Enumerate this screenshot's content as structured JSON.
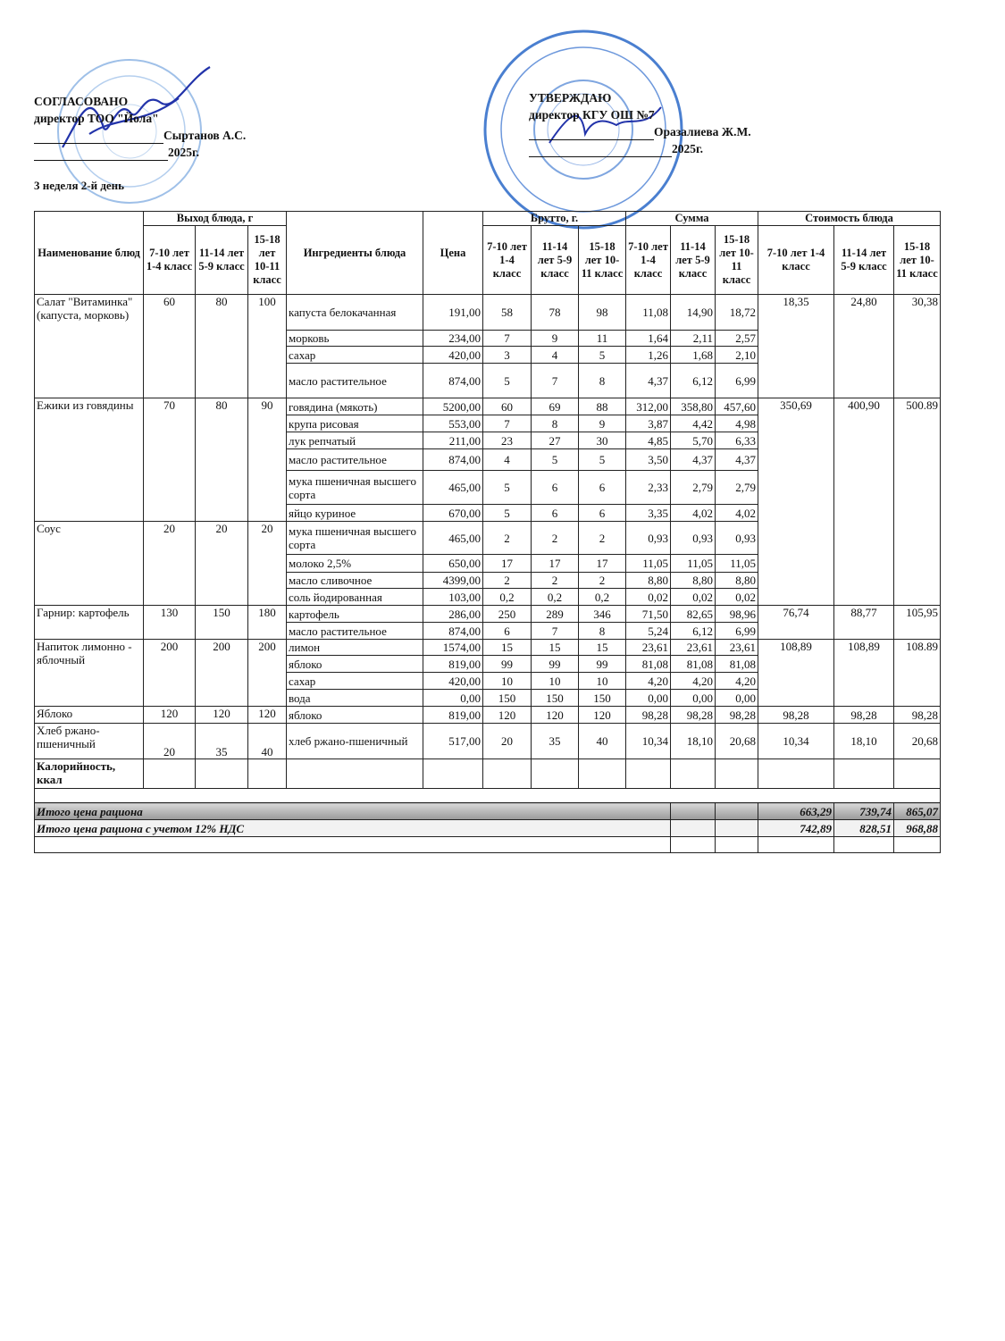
{
  "left_block": {
    "title": "СОГЛАСОВАНО",
    "position": "директор ТОО \"Йола\"",
    "name": "Сыртанов А.С.",
    "year": "2025г."
  },
  "right_block": {
    "title": "УТВЕРЖДАЮ",
    "position": "директор КГУ ОШ №7",
    "name": "Оразалиева Ж.М.",
    "year": "2025г."
  },
  "stamp_colors": {
    "ink": "#4a7fd0",
    "signature": "#2233aa"
  },
  "week_label": "3 неделя 2-й день",
  "table": {
    "headers": {
      "dish": "Наименование блюд",
      "output": "Выход блюда, г",
      "ingredients": "Ингредиенты блюда",
      "price": "Цена",
      "brutto": "Брутто, г.",
      "sum": "Сумма",
      "cost": "Стоимость блюда",
      "age_groups": [
        "7-10 лет 1-4 класс",
        "11-14 лет 5-9 класс",
        "15-18 лет 10-11 класс"
      ],
      "cost_groups": [
        "7-10 лет 1-4 класс",
        "11-14 лет 5-9 класс",
        "15-18 лет 10-11 класс"
      ]
    },
    "dishes": [
      {
        "name": "Салат \"Витаминка\" (капуста, морковь)",
        "output": [
          "60",
          "80",
          "100"
        ],
        "cost": [
          "18,35",
          "24,80",
          "30,38"
        ],
        "ingredients": [
          {
            "name": "капуста белокачанная",
            "price": "191,00",
            "brutto": [
              "58",
              "78",
              "98"
            ],
            "sum": [
              "11,08",
              "14,90",
              "18,72"
            ]
          },
          {
            "name": "морковь",
            "price": "234,00",
            "brutto": [
              "7",
              "9",
              "11"
            ],
            "sum": [
              "1,64",
              "2,11",
              "2,57"
            ]
          },
          {
            "name": "сахар",
            "price": "420,00",
            "brutto": [
              "3",
              "4",
              "5"
            ],
            "sum": [
              "1,26",
              "1,68",
              "2,10"
            ]
          },
          {
            "name": "масло растительное",
            "price": "874,00",
            "brutto": [
              "5",
              "7",
              "8"
            ],
            "sum": [
              "4,37",
              "6,12",
              "6,99"
            ]
          }
        ]
      },
      {
        "name": "Ежики из говядины",
        "output": [
          "70",
          "80",
          "90"
        ],
        "cost": [
          "350,69",
          "400,90",
          "500.89"
        ],
        "ingredients": [
          {
            "name": "говядина (мякоть)",
            "price": "5200,00",
            "brutto": [
              "60",
              "69",
              "88"
            ],
            "sum": [
              "312,00",
              "358,80",
              "457,60"
            ]
          },
          {
            "name": "крупа рисовая",
            "price": "553,00",
            "brutto": [
              "7",
              "8",
              "9"
            ],
            "sum": [
              "3,87",
              "4,42",
              "4,98"
            ]
          },
          {
            "name": "лук репчатый",
            "price": "211,00",
            "brutto": [
              "23",
              "27",
              "30"
            ],
            "sum": [
              "4,85",
              "5,70",
              "6,33"
            ]
          },
          {
            "name": "масло растительное",
            "price": "874,00",
            "brutto": [
              "4",
              "5",
              "5"
            ],
            "sum": [
              "3,50",
              "4,37",
              "4,37"
            ]
          },
          {
            "name": "мука пшеничная высшего сорта",
            "price": "465,00",
            "brutto": [
              "5",
              "6",
              "6"
            ],
            "sum": [
              "2,33",
              "2,79",
              "2,79"
            ]
          },
          {
            "name": "яйцо куриное",
            "price": "670,00",
            "brutto": [
              "5",
              "6",
              "6"
            ],
            "sum": [
              "3,35",
              "4,02",
              "4,02"
            ]
          }
        ]
      },
      {
        "name": "Соус",
        "output": [
          "20",
          "20",
          "20"
        ],
        "cost": [
          "",
          "",
          ""
        ],
        "ingredients": [
          {
            "name": "мука пшеничная высшего сорта",
            "price": "465,00",
            "brutto": [
              "2",
              "2",
              "2"
            ],
            "sum": [
              "0,93",
              "0,93",
              "0,93"
            ]
          },
          {
            "name": "молоко 2,5%",
            "price": "650,00",
            "brutto": [
              "17",
              "17",
              "17"
            ],
            "sum": [
              "11,05",
              "11,05",
              "11,05"
            ]
          },
          {
            "name": "масло сливочное",
            "price": "4399,00",
            "brutto": [
              "2",
              "2",
              "2"
            ],
            "sum": [
              "8,80",
              "8,80",
              "8,80"
            ]
          },
          {
            "name": "соль йодированная",
            "price": "103,00",
            "brutto": [
              "0,2",
              "0,2",
              "0,2"
            ],
            "sum": [
              "0,02",
              "0,02",
              "0,02"
            ]
          }
        ]
      },
      {
        "name": "Гарнир: картофель",
        "output": [
          "130",
          "150",
          "180"
        ],
        "cost": [
          "76,74",
          "88,77",
          "105,95"
        ],
        "ingredients": [
          {
            "name": "картофель",
            "price": "286,00",
            "brutto": [
              "250",
              "289",
              "346"
            ],
            "sum": [
              "71,50",
              "82,65",
              "98,96"
            ]
          },
          {
            "name": "масло растительное",
            "price": "874,00",
            "brutto": [
              "6",
              "7",
              "8"
            ],
            "sum": [
              "5,24",
              "6,12",
              "6,99"
            ]
          }
        ]
      },
      {
        "name": "Напиток лимонно - яблочный",
        "output": [
          "200",
          "200",
          "200"
        ],
        "cost": [
          "108,89",
          "108,89",
          "108.89"
        ],
        "ingredients": [
          {
            "name": "лимон",
            "price": "1574,00",
            "brutto": [
              "15",
              "15",
              "15"
            ],
            "sum": [
              "23,61",
              "23,61",
              "23,61"
            ]
          },
          {
            "name": "яблоко",
            "price": "819,00",
            "brutto": [
              "99",
              "99",
              "99"
            ],
            "sum": [
              "81,08",
              "81,08",
              "81,08"
            ]
          },
          {
            "name": "сахар",
            "price": "420,00",
            "brutto": [
              "10",
              "10",
              "10"
            ],
            "sum": [
              "4,20",
              "4,20",
              "4,20"
            ]
          },
          {
            "name": "вода",
            "price": "0,00",
            "brutto": [
              "150",
              "150",
              "150"
            ],
            "sum": [
              "0,00",
              "0,00",
              "0,00"
            ]
          }
        ]
      },
      {
        "name": "Яблоко",
        "output": [
          "120",
          "120",
          "120"
        ],
        "cost": [
          "98,28",
          "98,28",
          "98,28"
        ],
        "ingredients": [
          {
            "name": "яблоко",
            "price": "819,00",
            "brutto": [
              "120",
              "120",
              "120"
            ],
            "sum": [
              "98,28",
              "98,28",
              "98,28"
            ]
          }
        ]
      },
      {
        "name": "Хлеб ржано-пшеничный",
        "output": [
          "20",
          "35",
          "40"
        ],
        "cost": [
          "10,34",
          "18,10",
          "20,68"
        ],
        "ingredients": [
          {
            "name": "хлеб ржано-пшеничный",
            "price": "517,00",
            "brutto": [
              "20",
              "35",
              "40"
            ],
            "sum": [
              "10,34",
              "18,10",
              "20,68"
            ]
          }
        ]
      }
    ],
    "calories_label": "Калорийность, ккал",
    "total": {
      "label": "Итого цена рациона",
      "values": [
        "663,29",
        "739,74",
        "865,07"
      ]
    },
    "total_vat": {
      "label": "Итого цена рациона с учетом 12% НДС",
      "values": [
        "742,89",
        "828,51",
        "968,88"
      ]
    }
  }
}
